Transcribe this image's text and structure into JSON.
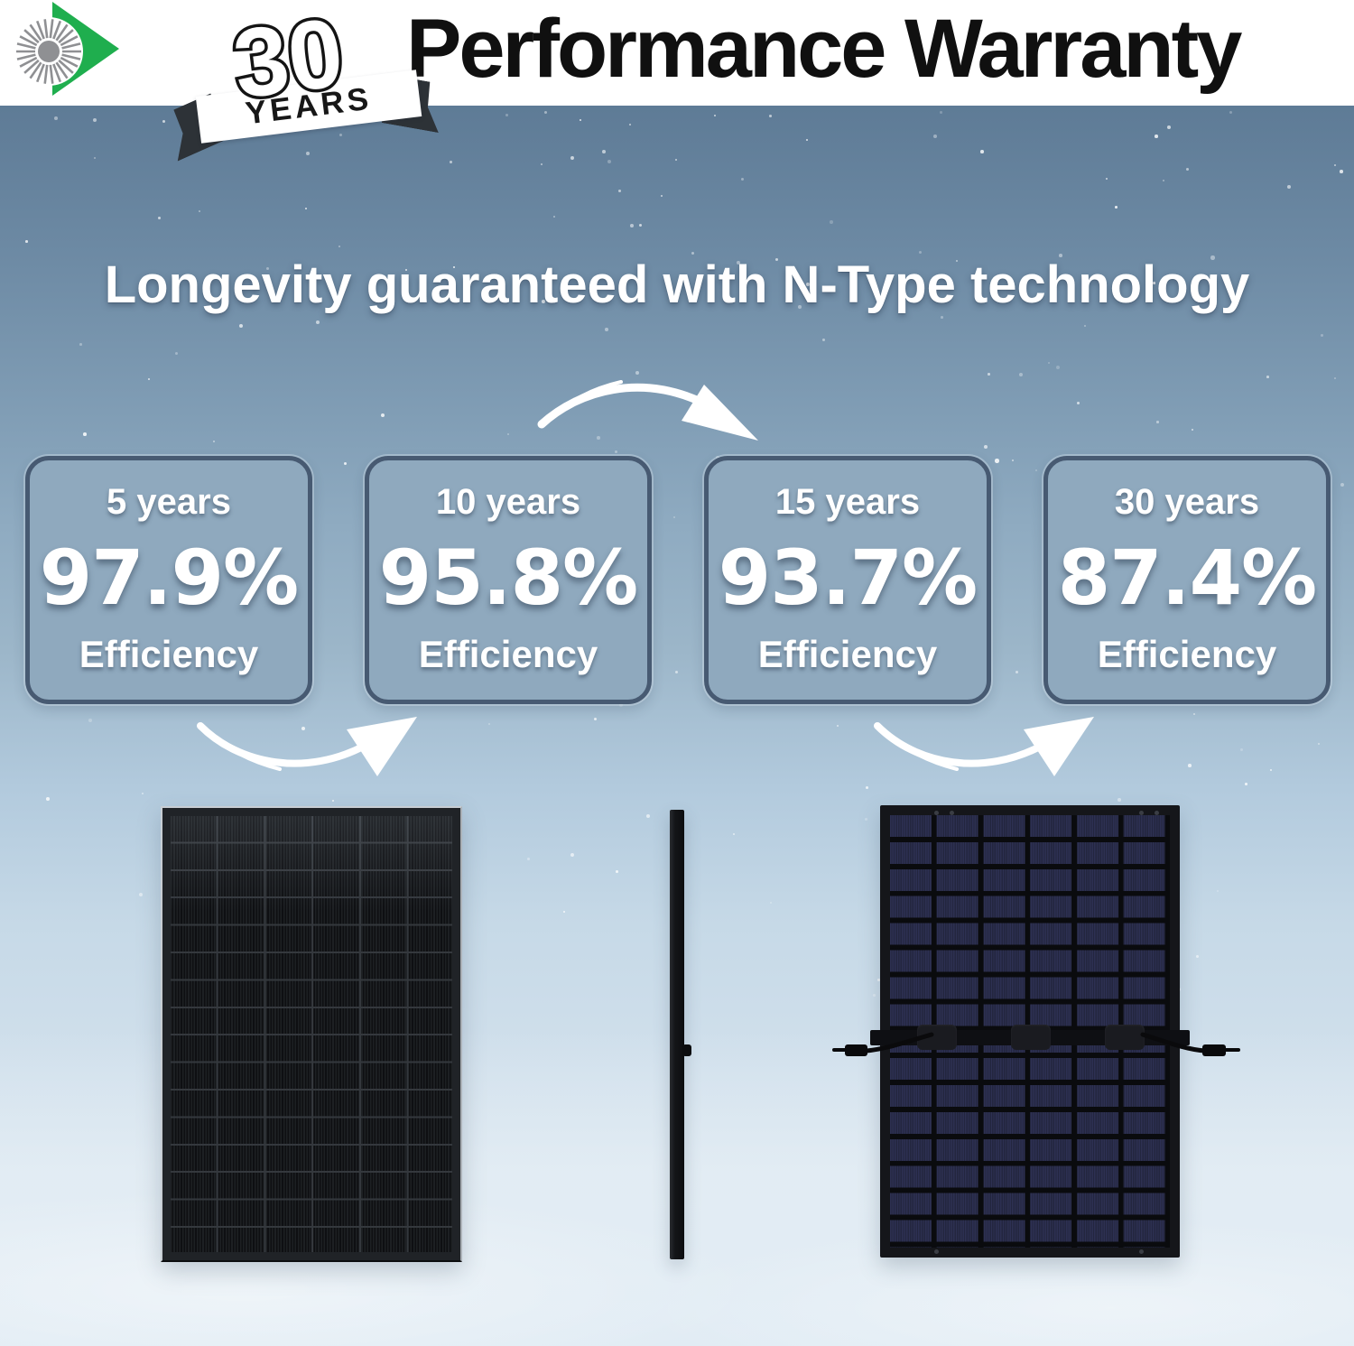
{
  "header": {
    "badge": {
      "number": "30",
      "unit": "YEARS"
    },
    "title": "Performance Warranty"
  },
  "headline": "Longevity guaranteed with N-Type technology",
  "milestones": [
    {
      "period": "5 years",
      "value": "97.9%",
      "label": "Efficiency"
    },
    {
      "period": "10 years",
      "value": "95.8%",
      "label": "Efficiency"
    },
    {
      "period": "15 years",
      "value": "93.7%",
      "label": "Efficiency"
    },
    {
      "period": "30 years",
      "value": "87.4%",
      "label": "Efficiency"
    }
  ],
  "colors": {
    "accent_green": "#1fae4e",
    "logo_gray": "#8f9093",
    "card_fill": "#8fa9be",
    "card_border": "#475a72",
    "sky_top": "#5e7b96",
    "sky_bottom": "#dce8f1",
    "panel_cell_navy": "#272a47",
    "text_dark": "#101010",
    "text_light": "#ffffff"
  }
}
